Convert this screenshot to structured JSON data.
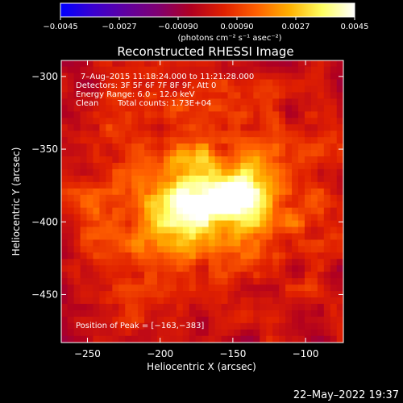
{
  "chart_data": {
    "type": "heatmap",
    "title": "Reconstructed RHESSI Image",
    "xlabel": "Heliocentric X (arcsec)",
    "ylabel": "Heliocentric Y (arcsec)",
    "xlim": [
      -268,
      -74
    ],
    "ylim": [
      -483,
      -289
    ],
    "x_ticks": [
      -250,
      -200,
      -150,
      -100
    ],
    "x_tick_labels": [
      "−250",
      "−200",
      "−150",
      "−100"
    ],
    "y_ticks": [
      -300,
      -350,
      -400,
      -450
    ],
    "y_tick_labels": [
      "−300",
      "−350",
      "−400",
      "−450"
    ],
    "annotations": [
      "7–Aug–2015 11:18:24.000 to 11:21:28.000",
      "Detectors: 3F 5F 6F 7F 8F 9F, Att 0",
      "Energy Range: 6.0 – 12.0 keV"
    ],
    "clean_label": "Clean",
    "total_counts": "Total counts: 1.73E+04",
    "peak_label": "Position of Peak = [−163,−383]",
    "peak": [
      -163,
      -383
    ],
    "peak_value": 0.0045,
    "colorbar": {
      "range": [
        -0.0045,
        0.0045
      ],
      "tick_labels": [
        "−0.0045",
        "−0.0027",
        "−0.00090",
        "0.00090",
        "0.0027",
        "0.0045"
      ],
      "tick_values": [
        -0.0045,
        -0.0027,
        -0.0009,
        0.0009,
        0.0027,
        0.0045
      ],
      "unit_label": "(photons cm⁻² s⁻¹ asec⁻²)"
    },
    "colormap": [
      "#0000ff",
      "#3a00d0",
      "#6000a0",
      "#800070",
      "#b00020",
      "#e02000",
      "#ff6000",
      "#ffb000",
      "#ffff60",
      "#ffffff"
    ],
    "grid": false
  },
  "footer": {
    "date": "22–May–2022 19:37"
  }
}
